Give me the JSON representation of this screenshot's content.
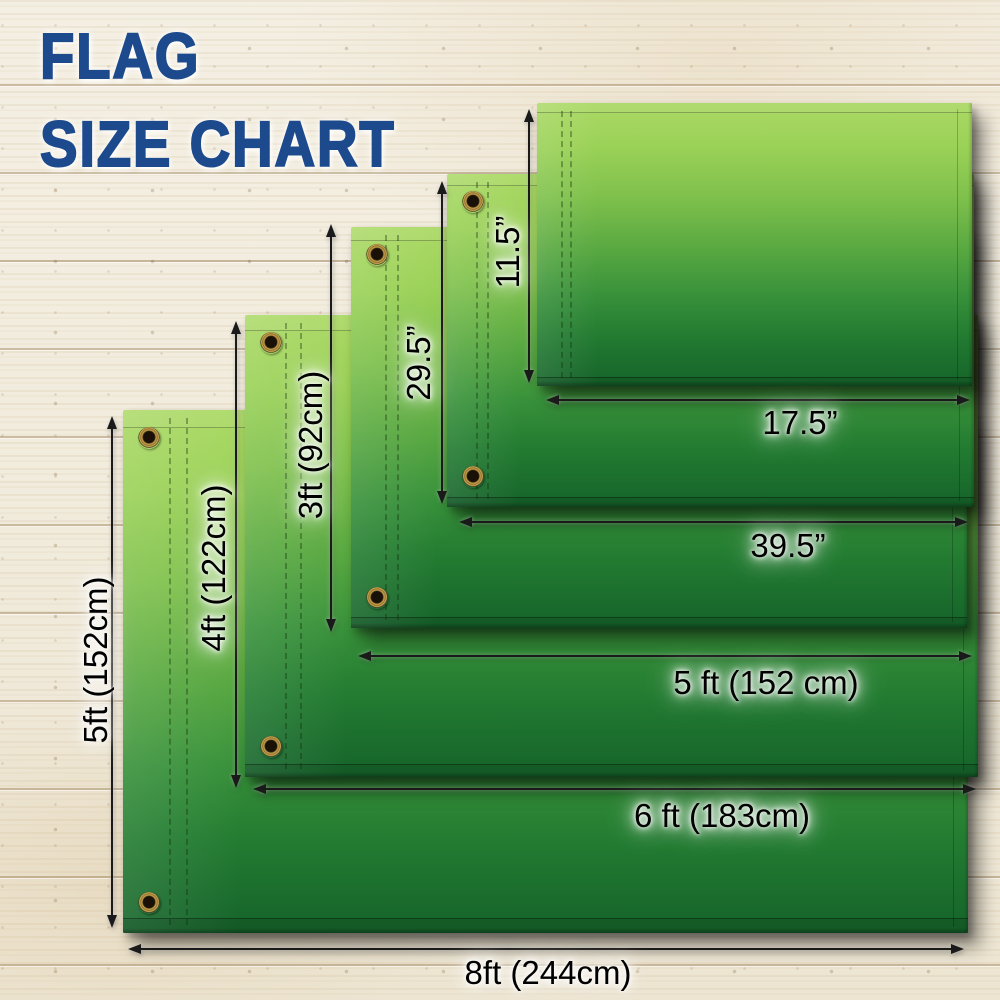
{
  "title": {
    "line1": "FLAG",
    "line2": "SIZE CHART"
  },
  "colors": {
    "title_blue": "#1c4a8c",
    "flag_light_green": "#abd965",
    "flag_dark_green": "#15632a",
    "arrow_black": "#1a1a1a",
    "wood_base": "#f2ecdf"
  },
  "chart_data": {
    "type": "table",
    "title": "FLAG SIZE CHART",
    "columns": [
      "height",
      "width"
    ],
    "rows": [
      [
        "11.5”",
        "17.5”"
      ],
      [
        "29.5”",
        "39.5”"
      ],
      [
        "3ft (92cm)",
        "5 ft (152 cm)"
      ],
      [
        "4ft (122cm)",
        "6 ft (183cm)"
      ],
      [
        "5ft (152cm)",
        "8ft (244cm)"
      ]
    ]
  },
  "flags": [
    {
      "height_label": "11.5”",
      "width_label": "17.5”"
    },
    {
      "height_label": "29.5”",
      "width_label": "39.5”"
    },
    {
      "height_label": "3ft (92cm)",
      "width_label": "5 ft (152 cm)"
    },
    {
      "height_label": "4ft (122cm)",
      "width_label": "6 ft (183cm)"
    },
    {
      "height_label": "5ft (152cm)",
      "width_label": "8ft (244cm)"
    }
  ]
}
